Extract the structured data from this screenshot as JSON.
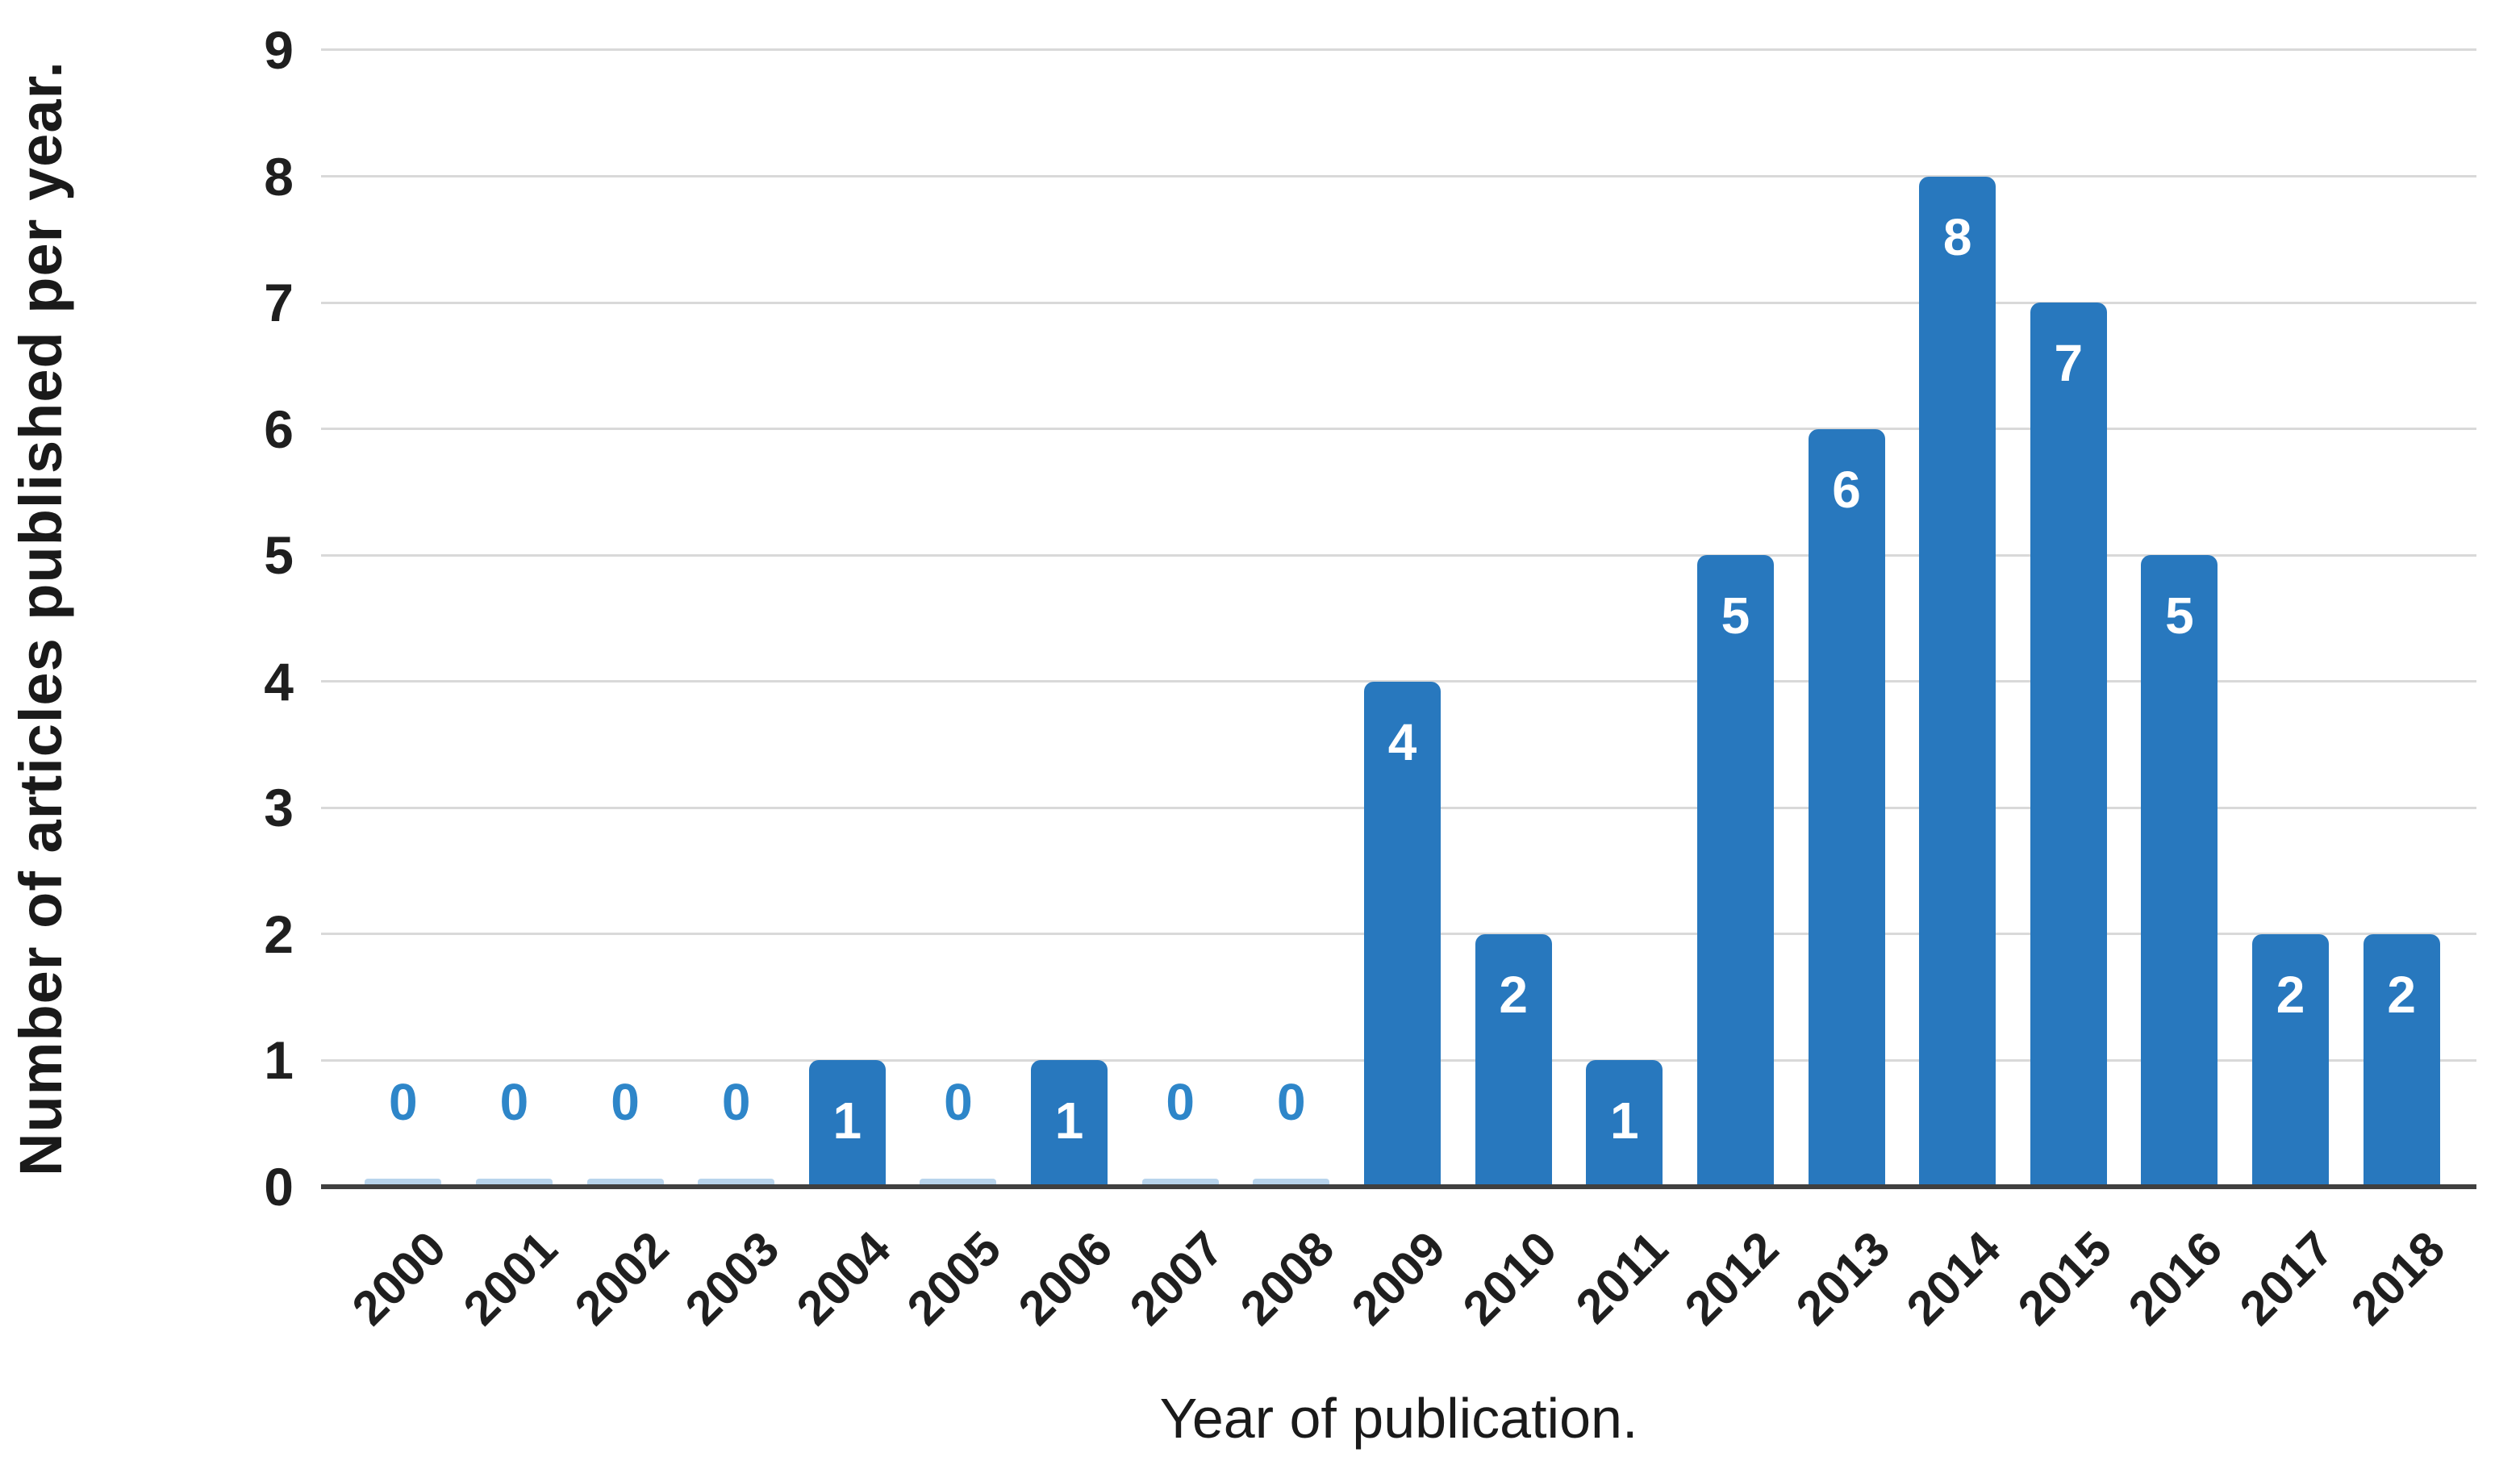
{
  "chart_data": {
    "type": "bar",
    "title": "",
    "xlabel": "Year of publication.",
    "ylabel": "Number of articles published per year.",
    "categories": [
      "2000",
      "2001",
      "2002",
      "2003",
      "2004",
      "2005",
      "2006",
      "2007",
      "2008",
      "2009",
      "2010",
      "2011",
      "2012",
      "2013",
      "2014",
      "2015",
      "2016",
      "2017",
      "2018"
    ],
    "values": [
      0,
      0,
      0,
      0,
      1,
      0,
      1,
      0,
      0,
      4,
      2,
      1,
      5,
      6,
      8,
      7,
      5,
      2,
      2
    ],
    "data_labels": [
      "0",
      "0",
      "0",
      "0",
      "1",
      "0",
      "1",
      "0",
      "0",
      "4",
      "2",
      "1",
      "5",
      "6",
      "8",
      "7",
      "5",
      "2",
      "2"
    ],
    "ylim": [
      0,
      9
    ],
    "ytick_step": 1,
    "ytick_labels": [
      "0",
      "1",
      "2",
      "3",
      "4",
      "5",
      "6",
      "7",
      "8",
      "9"
    ],
    "grid": "horizontal",
    "legend": "none",
    "colors": {
      "bar": "#2878be",
      "zero_sliver": "#b8d4ec",
      "zero_label": "#2e86c9",
      "inside_label": "#ffffff",
      "gridline": "#d9d9d9",
      "axis_line": "#404040",
      "tick_text": "#1f1f1f",
      "title_text": "#1a1a1a"
    }
  }
}
